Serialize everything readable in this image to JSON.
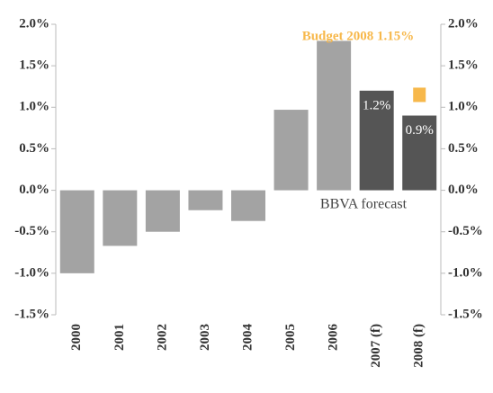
{
  "chart_data": {
    "type": "bar",
    "categories": [
      "2000",
      "2001",
      "2002",
      "2003",
      "2004",
      "2005",
      "2006",
      "2007 (f)",
      "2008 (f)"
    ],
    "values": [
      -1.0,
      -0.67,
      -0.5,
      -0.24,
      -0.37,
      0.97,
      1.8,
      1.2,
      0.9
    ],
    "value_labels": [
      null,
      null,
      null,
      null,
      null,
      null,
      null,
      "1.2%",
      "0.9%"
    ],
    "colors": [
      "#a3a3a3",
      "#a3a3a3",
      "#a3a3a3",
      "#a3a3a3",
      "#a3a3a3",
      "#a3a3a3",
      "#a3a3a3",
      "#555555",
      "#555555"
    ],
    "ylim": [
      -1.5,
      2.0
    ],
    "yticks": [
      {
        "value": -1.5,
        "label": "-1.5%"
      },
      {
        "value": -1.0,
        "label": "-1.0%"
      },
      {
        "value": -0.5,
        "label": "-0.5%"
      },
      {
        "value": 0.0,
        "label": "0.0%"
      },
      {
        "value": 0.5,
        "label": "0.5%"
      },
      {
        "value": 1.0,
        "label": "1.0%"
      },
      {
        "value": 1.5,
        "label": "1.5%"
      },
      {
        "value": 2.0,
        "label": "2.0%"
      }
    ],
    "y2lim": [
      -1.5,
      2.0
    ],
    "y2ticks": [
      {
        "value": -1.5,
        "label": "-1.5%"
      },
      {
        "value": -1.0,
        "label": "-1.0%"
      },
      {
        "value": -0.5,
        "label": "-0.5%"
      },
      {
        "value": 0.0,
        "label": "0.0%"
      },
      {
        "value": 0.5,
        "label": "0.5%"
      },
      {
        "value": 1.0,
        "label": "1.0%"
      },
      {
        "value": 1.5,
        "label": "1.5%"
      },
      {
        "value": 2.0,
        "label": "2.0%"
      }
    ],
    "budget": {
      "label": "Budget 2008 1.15%",
      "value": 1.15,
      "color": "#f7b84b"
    },
    "forecast_annotation": "BBVA forecast"
  }
}
